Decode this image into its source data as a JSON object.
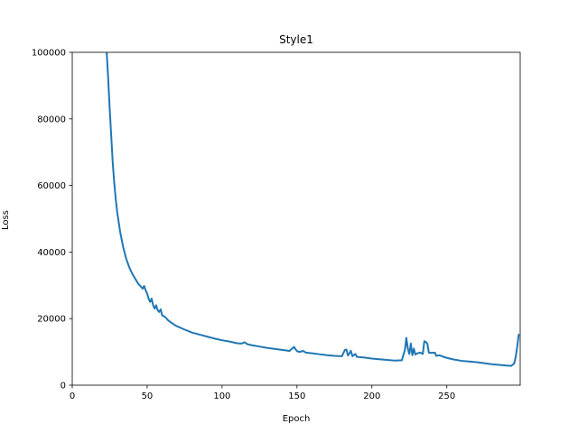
{
  "chart_data": {
    "type": "line",
    "title": "Style1",
    "xlabel": "Epoch",
    "ylabel": "Loss",
    "xlim": [
      0,
      299
    ],
    "ylim": [
      0,
      100000
    ],
    "x_ticks": [
      0,
      50,
      100,
      150,
      200,
      250
    ],
    "y_ticks": [
      0,
      20000,
      40000,
      60000,
      80000,
      100000
    ],
    "grid": false,
    "series": [
      {
        "color": "#1f77b4",
        "points": [
          [
            23,
            100000
          ],
          [
            24,
            92000
          ],
          [
            25,
            83000
          ],
          [
            26,
            75000
          ],
          [
            27,
            67000
          ],
          [
            28,
            61000
          ],
          [
            29,
            56000
          ],
          [
            30,
            52000
          ],
          [
            32,
            46000
          ],
          [
            34,
            41500
          ],
          [
            36,
            38000
          ],
          [
            38,
            35500
          ],
          [
            40,
            33500
          ],
          [
            42,
            32000
          ],
          [
            44,
            30500
          ],
          [
            46,
            29500
          ],
          [
            47,
            29000
          ],
          [
            48,
            29800
          ],
          [
            49,
            28500
          ],
          [
            50,
            27500
          ],
          [
            51,
            26000
          ],
          [
            52,
            25000
          ],
          [
            53,
            26000
          ],
          [
            54,
            24000
          ],
          [
            55,
            23000
          ],
          [
            56,
            24000
          ],
          [
            57,
            22500
          ],
          [
            58,
            22000
          ],
          [
            59,
            22800
          ],
          [
            60,
            21000
          ],
          [
            62,
            20500
          ],
          [
            64,
            19500
          ],
          [
            66,
            18800
          ],
          [
            68,
            18200
          ],
          [
            70,
            17700
          ],
          [
            75,
            16700
          ],
          [
            80,
            15800
          ],
          [
            85,
            15200
          ],
          [
            90,
            14600
          ],
          [
            95,
            14000
          ],
          [
            100,
            13500
          ],
          [
            105,
            13100
          ],
          [
            110,
            12600
          ],
          [
            113,
            12500
          ],
          [
            115,
            12900
          ],
          [
            117,
            12300
          ],
          [
            120,
            12000
          ],
          [
            125,
            11600
          ],
          [
            130,
            11200
          ],
          [
            135,
            10900
          ],
          [
            140,
            10600
          ],
          [
            145,
            10300
          ],
          [
            148,
            11500
          ],
          [
            150,
            10200
          ],
          [
            152,
            10000
          ],
          [
            154,
            10300
          ],
          [
            156,
            9800
          ],
          [
            160,
            9600
          ],
          [
            165,
            9300
          ],
          [
            170,
            9000
          ],
          [
            175,
            8800
          ],
          [
            180,
            8700
          ],
          [
            182,
            10600
          ],
          [
            183,
            10700
          ],
          [
            184,
            8900
          ],
          [
            186,
            10300
          ],
          [
            187,
            8700
          ],
          [
            189,
            9400
          ],
          [
            190,
            8500
          ],
          [
            195,
            8300
          ],
          [
            200,
            8000
          ],
          [
            205,
            7800
          ],
          [
            210,
            7600
          ],
          [
            215,
            7400
          ],
          [
            220,
            7500
          ],
          [
            222,
            10500
          ],
          [
            223,
            14200
          ],
          [
            224,
            11000
          ],
          [
            225,
            9400
          ],
          [
            226,
            12500
          ],
          [
            227,
            9000
          ],
          [
            228,
            11000
          ],
          [
            229,
            9200
          ],
          [
            230,
            9500
          ],
          [
            232,
            9800
          ],
          [
            234,
            9400
          ],
          [
            235,
            13200
          ],
          [
            236,
            13000
          ],
          [
            237,
            12500
          ],
          [
            238,
            9800
          ],
          [
            240,
            9700
          ],
          [
            242,
            9800
          ],
          [
            243,
            8800
          ],
          [
            245,
            9000
          ],
          [
            248,
            8500
          ],
          [
            250,
            8200
          ],
          [
            255,
            7700
          ],
          [
            260,
            7300
          ],
          [
            265,
            7100
          ],
          [
            270,
            6900
          ],
          [
            275,
            6600
          ],
          [
            280,
            6300
          ],
          [
            285,
            6100
          ],
          [
            290,
            5900
          ],
          [
            293,
            5800
          ],
          [
            295,
            6500
          ],
          [
            296,
            8500
          ],
          [
            297,
            11500
          ],
          [
            298,
            15200
          ]
        ]
      }
    ]
  }
}
